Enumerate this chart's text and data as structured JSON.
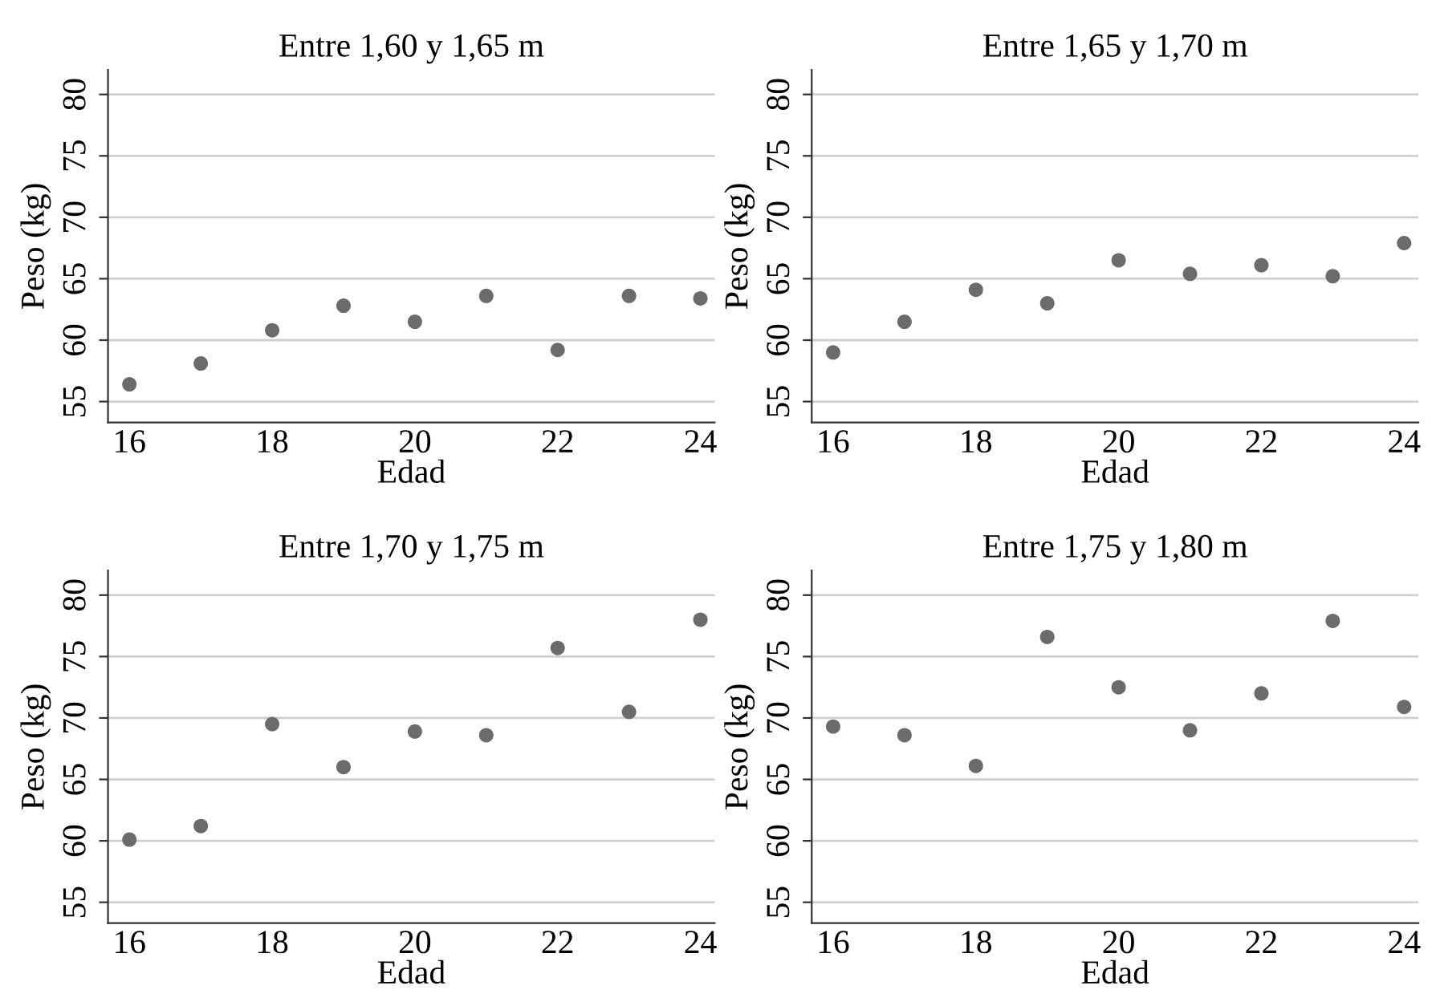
{
  "chart_data": [
    {
      "type": "scatter",
      "title": "Entre 1,60 y 1,65 m",
      "xlabel": "Edad",
      "ylabel": "Peso (kg)",
      "x": [
        16,
        17,
        18,
        19,
        20,
        21,
        22,
        23,
        24
      ],
      "series": [
        {
          "color": "#6b6b6b",
          "values": [
            56.4,
            58.1,
            60.8,
            62.8,
            61.5,
            63.6,
            59.2,
            63.6,
            63.4
          ]
        }
      ],
      "xlim": [
        15.7,
        24.2
      ],
      "ylim": [
        53.3,
        82
      ],
      "xticks": [
        16,
        18,
        20,
        22,
        24
      ],
      "yticks": [
        55,
        60,
        65,
        70,
        75,
        80
      ],
      "grid": "y",
      "marker": "circle"
    },
    {
      "type": "scatter",
      "title": "Entre 1,65 y 1,70 m",
      "xlabel": "Edad",
      "ylabel": "Peso (kg)",
      "x": [
        16,
        17,
        18,
        19,
        20,
        21,
        22,
        23,
        24
      ],
      "series": [
        {
          "color": "#6b6b6b",
          "values": [
            59.0,
            61.5,
            64.1,
            63.0,
            66.5,
            65.4,
            66.1,
            65.2,
            67.9
          ]
        }
      ],
      "xlim": [
        15.7,
        24.2
      ],
      "ylim": [
        53.3,
        82
      ],
      "xticks": [
        16,
        18,
        20,
        22,
        24
      ],
      "yticks": [
        55,
        60,
        65,
        70,
        75,
        80
      ],
      "grid": "y",
      "marker": "circle"
    },
    {
      "type": "scatter",
      "title": "Entre 1,70 y 1,75 m",
      "xlabel": "Edad",
      "ylabel": "Peso (kg)",
      "x": [
        16,
        17,
        18,
        19,
        20,
        21,
        22,
        23,
        24
      ],
      "series": [
        {
          "color": "#6b6b6b",
          "values": [
            60.1,
            61.2,
            69.5,
            66.0,
            68.9,
            68.6,
            75.7,
            70.5,
            78.0
          ]
        }
      ],
      "xlim": [
        15.7,
        24.2
      ],
      "ylim": [
        53.3,
        82
      ],
      "xticks": [
        16,
        18,
        20,
        22,
        24
      ],
      "yticks": [
        55,
        60,
        65,
        70,
        75,
        80
      ],
      "grid": "y",
      "marker": "circle"
    },
    {
      "type": "scatter",
      "title": "Entre 1,75 y 1,80 m",
      "xlabel": "Edad",
      "ylabel": "Peso (kg)",
      "x": [
        16,
        17,
        18,
        19,
        20,
        21,
        22,
        23,
        24
      ],
      "series": [
        {
          "color": "#6b6b6b",
          "values": [
            69.3,
            68.6,
            66.1,
            76.6,
            72.5,
            69.0,
            72.0,
            77.9,
            70.9
          ]
        }
      ],
      "xlim": [
        15.7,
        24.2
      ],
      "ylim": [
        53.3,
        82
      ],
      "xticks": [
        16,
        18,
        20,
        22,
        24
      ],
      "yticks": [
        55,
        60,
        65,
        70,
        75,
        80
      ],
      "grid": "y",
      "marker": "circle"
    }
  ]
}
